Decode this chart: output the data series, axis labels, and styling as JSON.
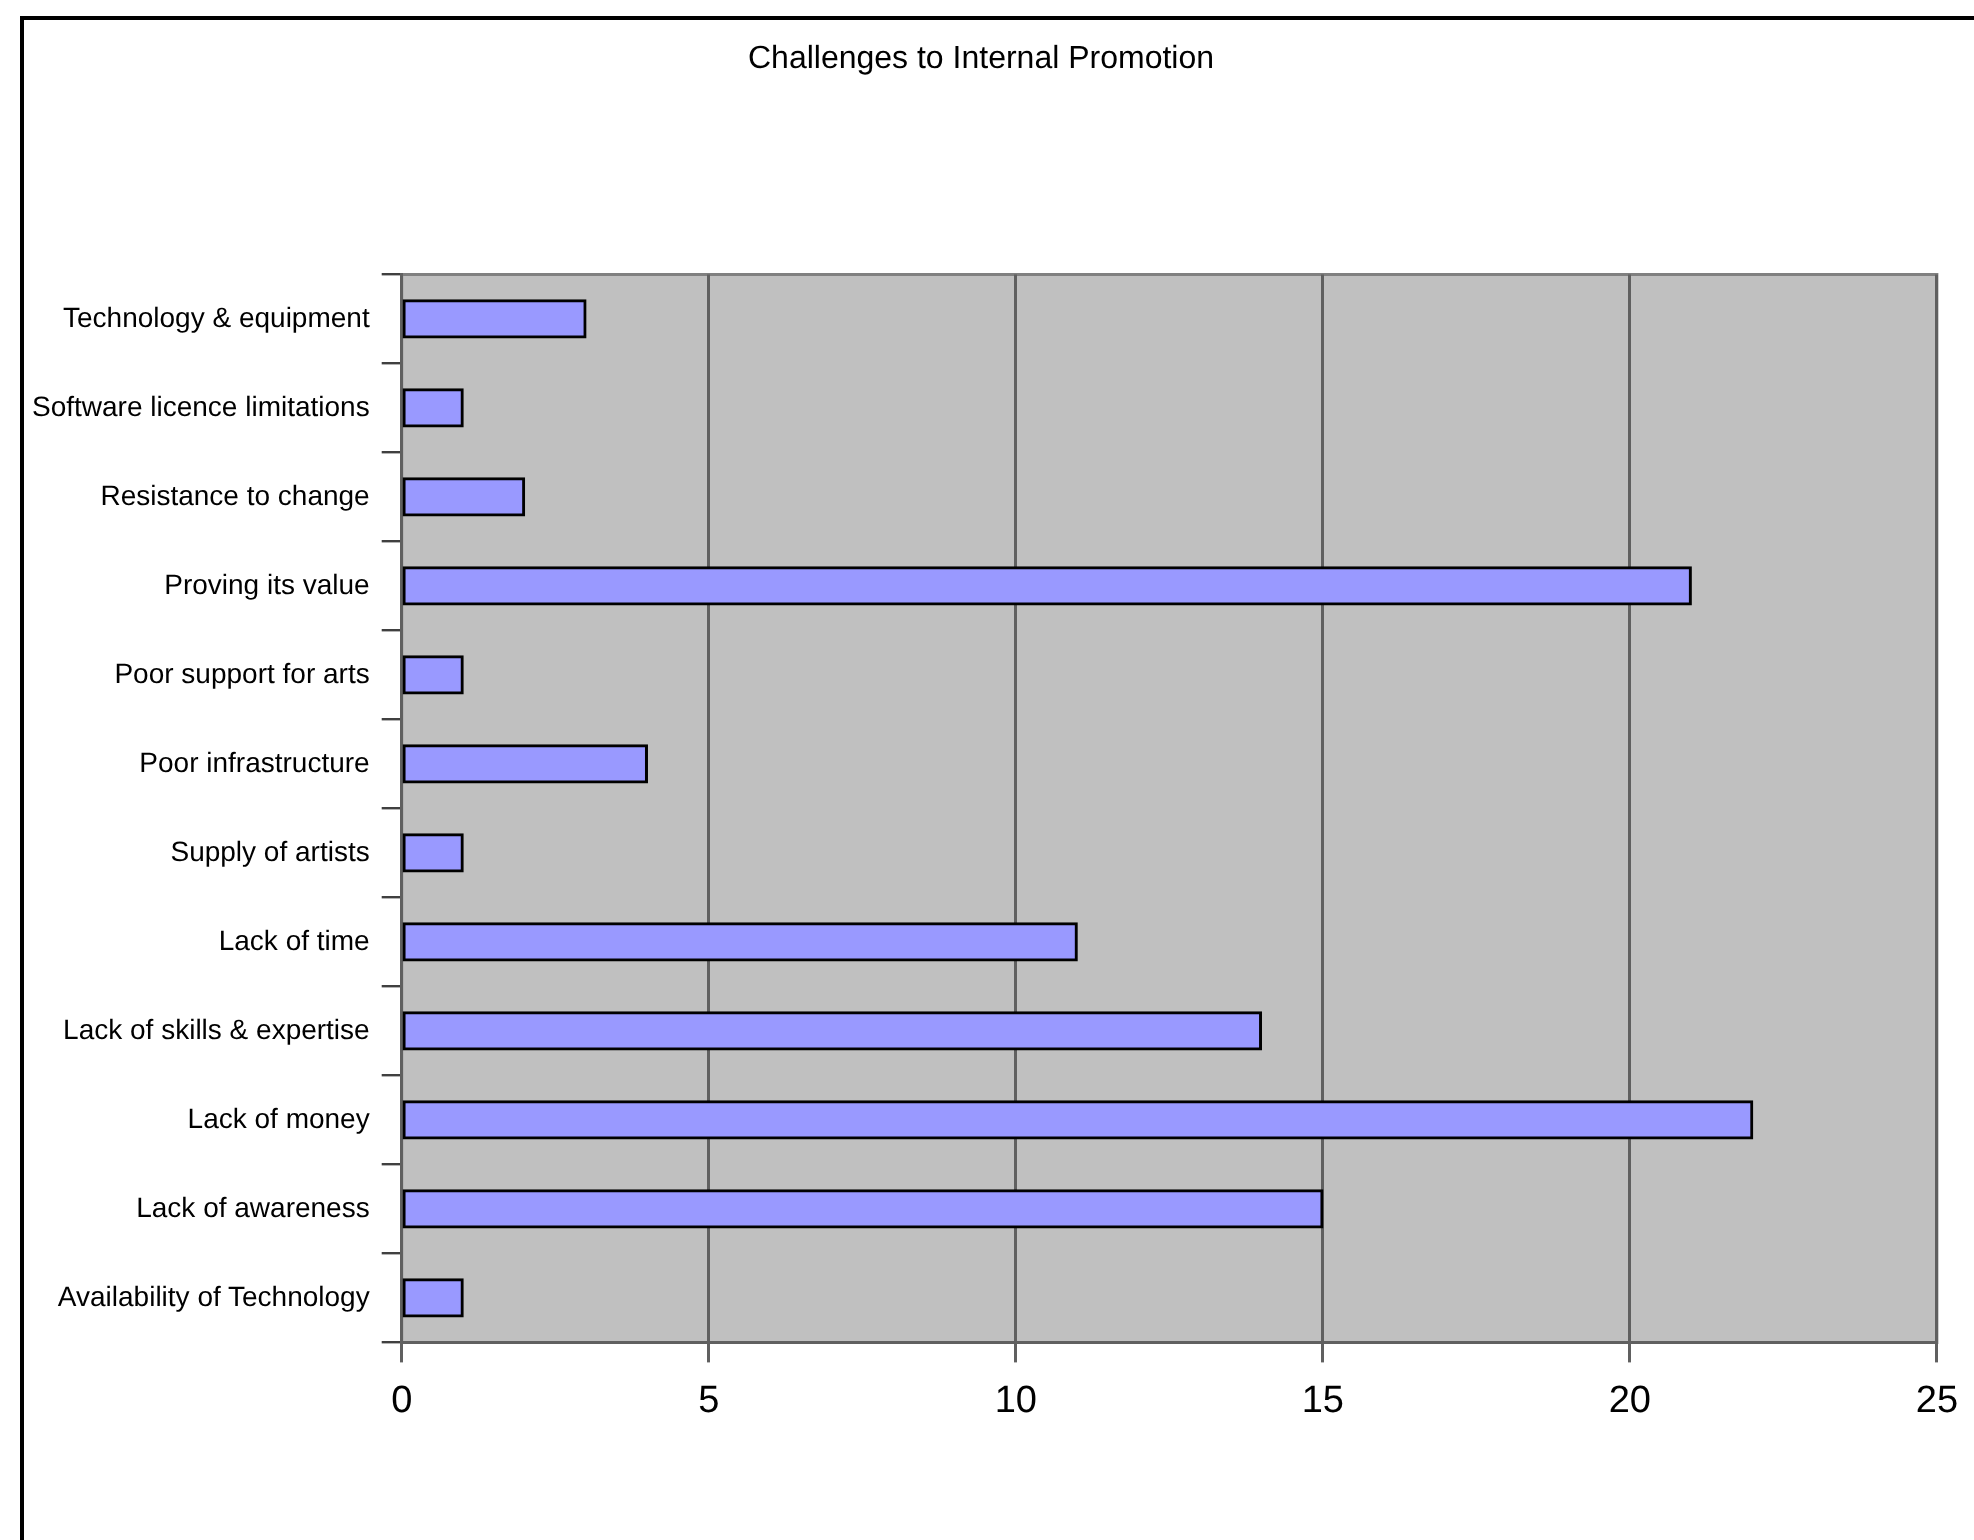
{
  "chart_data": {
    "type": "bar",
    "orientation": "horizontal",
    "title": "Challenges to Internal Promotion",
    "categories": [
      "Technology & equipment",
      "Software licence limitations",
      "Resistance to change",
      "Proving its value",
      "Poor support for arts",
      "Poor infrastructure",
      "Supply of artists",
      "Lack of time",
      "Lack of skills & expertise",
      "Lack of money",
      "Lack of awareness",
      "Availability of Technology"
    ],
    "values": [
      3,
      1,
      2,
      21,
      1,
      4,
      1,
      11,
      14,
      22,
      15,
      1
    ],
    "color": "#9999ff",
    "xlim": [
      0,
      25
    ],
    "xticks": [
      0,
      5,
      10,
      15,
      20,
      25
    ],
    "grid": "x"
  }
}
